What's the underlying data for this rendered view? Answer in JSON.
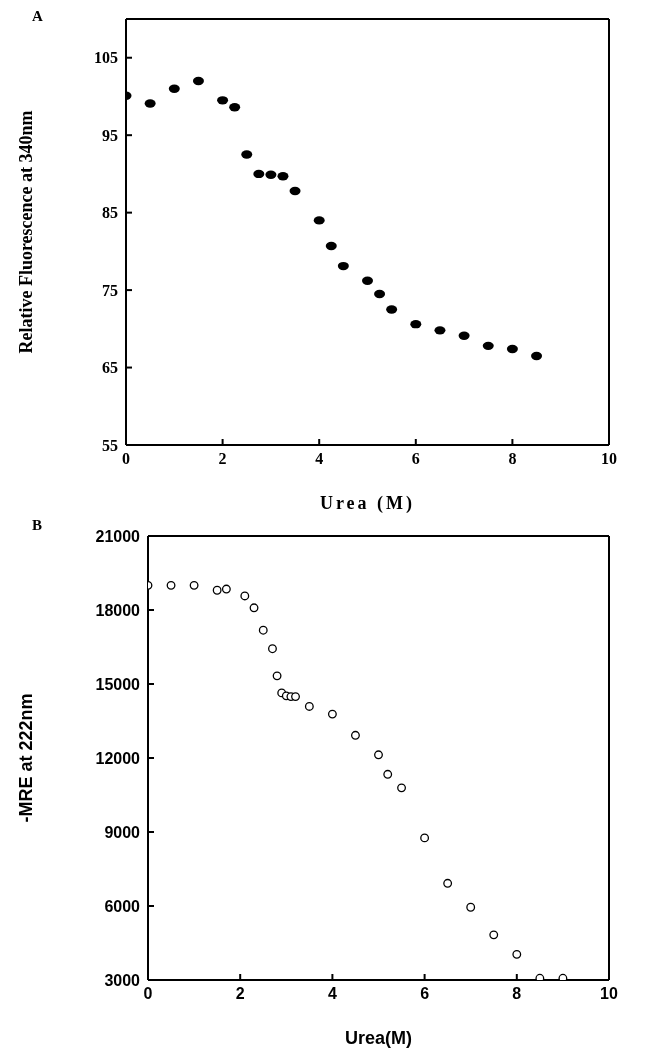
{
  "chart_data": [
    {
      "type": "scatter",
      "annotations": [
        "A"
      ],
      "xlabel": "Urea (M)",
      "ylabel": "Relative Fluorescence at 340nm",
      "xlim": [
        0,
        10
      ],
      "xticks": [
        0,
        2,
        4,
        6,
        8,
        10
      ],
      "ylim": [
        55,
        110
      ],
      "yticks": [
        55,
        65,
        75,
        85,
        95,
        105
      ],
      "marker": "circle",
      "series": [
        {
          "color": "#000000",
          "x": [
            0,
            0.5,
            1,
            1.5,
            2,
            2.25,
            2.5,
            2.75,
            3,
            3.25,
            3.5,
            4,
            4.25,
            4.5,
            5,
            5.25,
            5.5,
            6,
            6.5,
            7,
            7.5,
            8,
            8.5
          ],
          "values": [
            100.1,
            99.1,
            101,
            102,
            99.5,
            98.6,
            92.5,
            90,
            89.9,
            89.7,
            87.8,
            84,
            80.7,
            78.1,
            76.2,
            74.5,
            72.5,
            70.6,
            69.8,
            69.1,
            67.8,
            67.4,
            66.5
          ]
        }
      ]
    },
    {
      "type": "scatter",
      "annotations": [
        "B"
      ],
      "xlabel": "Urea(M)",
      "ylabel": "-MRE at 222nm",
      "xlim": [
        0,
        10
      ],
      "xticks": [
        0,
        2,
        4,
        6,
        8,
        10
      ],
      "ylim": [
        3000,
        21000
      ],
      "yticks": [
        3000,
        6000,
        9000,
        12000,
        15000,
        18000,
        21000
      ],
      "marker": "circle",
      "series": [
        {
          "color": "#000000",
          "x": [
            0,
            0.5,
            1,
            1.5,
            1.7,
            2.1,
            2.3,
            2.5,
            2.7,
            2.8,
            2.9,
            3,
            3.1,
            3.2,
            3.5,
            4,
            4.5,
            5,
            5.2,
            5.5,
            6,
            6.5,
            7,
            7.5,
            8,
            8.5,
            9
          ],
          "values": [
            19000,
            19000,
            19000,
            18800,
            18850,
            18570,
            18090,
            17180,
            16430,
            15330,
            14640,
            14520,
            14490,
            14490,
            14090,
            13780,
            12920,
            12130,
            11340,
            10790,
            8760,
            6920,
            5950,
            4830,
            4040,
            3070,
            3070
          ]
        }
      ]
    }
  ]
}
